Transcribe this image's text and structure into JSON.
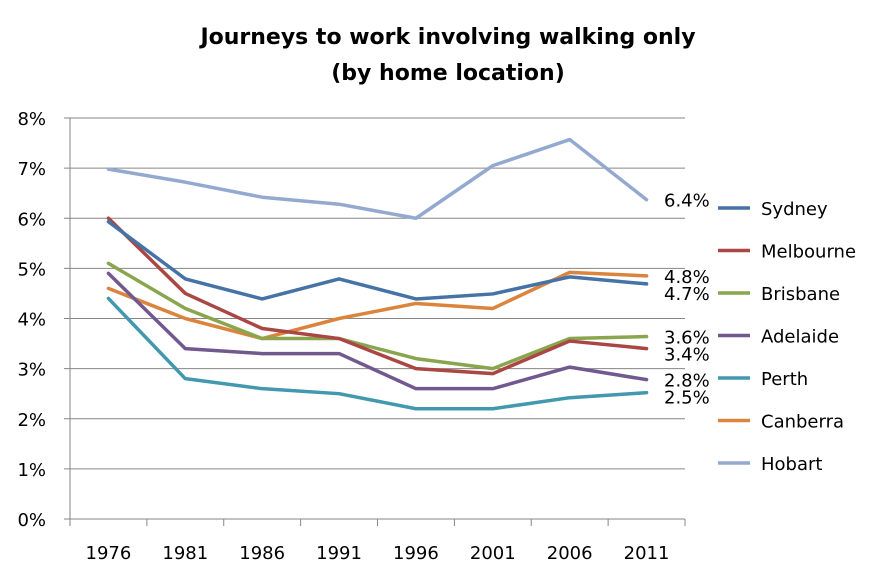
{
  "chart_data": {
    "type": "line",
    "title": [
      "Journeys to work involving walking only",
      "(by home location)"
    ],
    "xlabel": "",
    "ylabel": "",
    "categories": [
      "1976",
      "1981",
      "1986",
      "1991",
      "1996",
      "2001",
      "2006",
      "2011"
    ],
    "ylim": [
      0,
      8
    ],
    "yticks": [
      "0%",
      "1%",
      "2%",
      "3%",
      "4%",
      "5%",
      "6%",
      "7%",
      "8%"
    ],
    "grid": true,
    "legend": "right",
    "series": [
      {
        "name": "Sydney",
        "color": "#4572A7",
        "values": [
          5.93,
          4.79,
          4.39,
          4.79,
          4.39,
          4.49,
          4.83,
          4.69
        ],
        "end_label": "4.7%"
      },
      {
        "name": "Melbourne",
        "color": "#AA4643",
        "values": [
          6.0,
          4.5,
          3.8,
          3.6,
          3.0,
          2.9,
          3.55,
          3.4
        ],
        "end_label": "3.4%"
      },
      {
        "name": "Brisbane",
        "color": "#89A54E",
        "values": [
          5.1,
          4.2,
          3.6,
          3.6,
          3.2,
          3.0,
          3.6,
          3.64
        ],
        "end_label": "3.6%"
      },
      {
        "name": "Adelaide",
        "color": "#71588F",
        "values": [
          4.9,
          3.4,
          3.3,
          3.3,
          2.6,
          2.6,
          3.03,
          2.78
        ],
        "end_label": "2.8%"
      },
      {
        "name": "Perth",
        "color": "#4198AF",
        "values": [
          4.4,
          2.8,
          2.6,
          2.5,
          2.2,
          2.2,
          2.42,
          2.52
        ],
        "end_label": "2.5%"
      },
      {
        "name": "Canberra",
        "color": "#DB843D",
        "values": [
          4.6,
          4.0,
          3.6,
          4.0,
          4.3,
          4.2,
          4.92,
          4.85
        ],
        "end_label": "4.8%"
      },
      {
        "name": "Hobart",
        "color": "#93A9CF",
        "values": [
          6.98,
          6.72,
          6.42,
          6.28,
          6.0,
          7.05,
          7.57,
          6.37
        ],
        "end_label": "6.4%"
      }
    ]
  }
}
